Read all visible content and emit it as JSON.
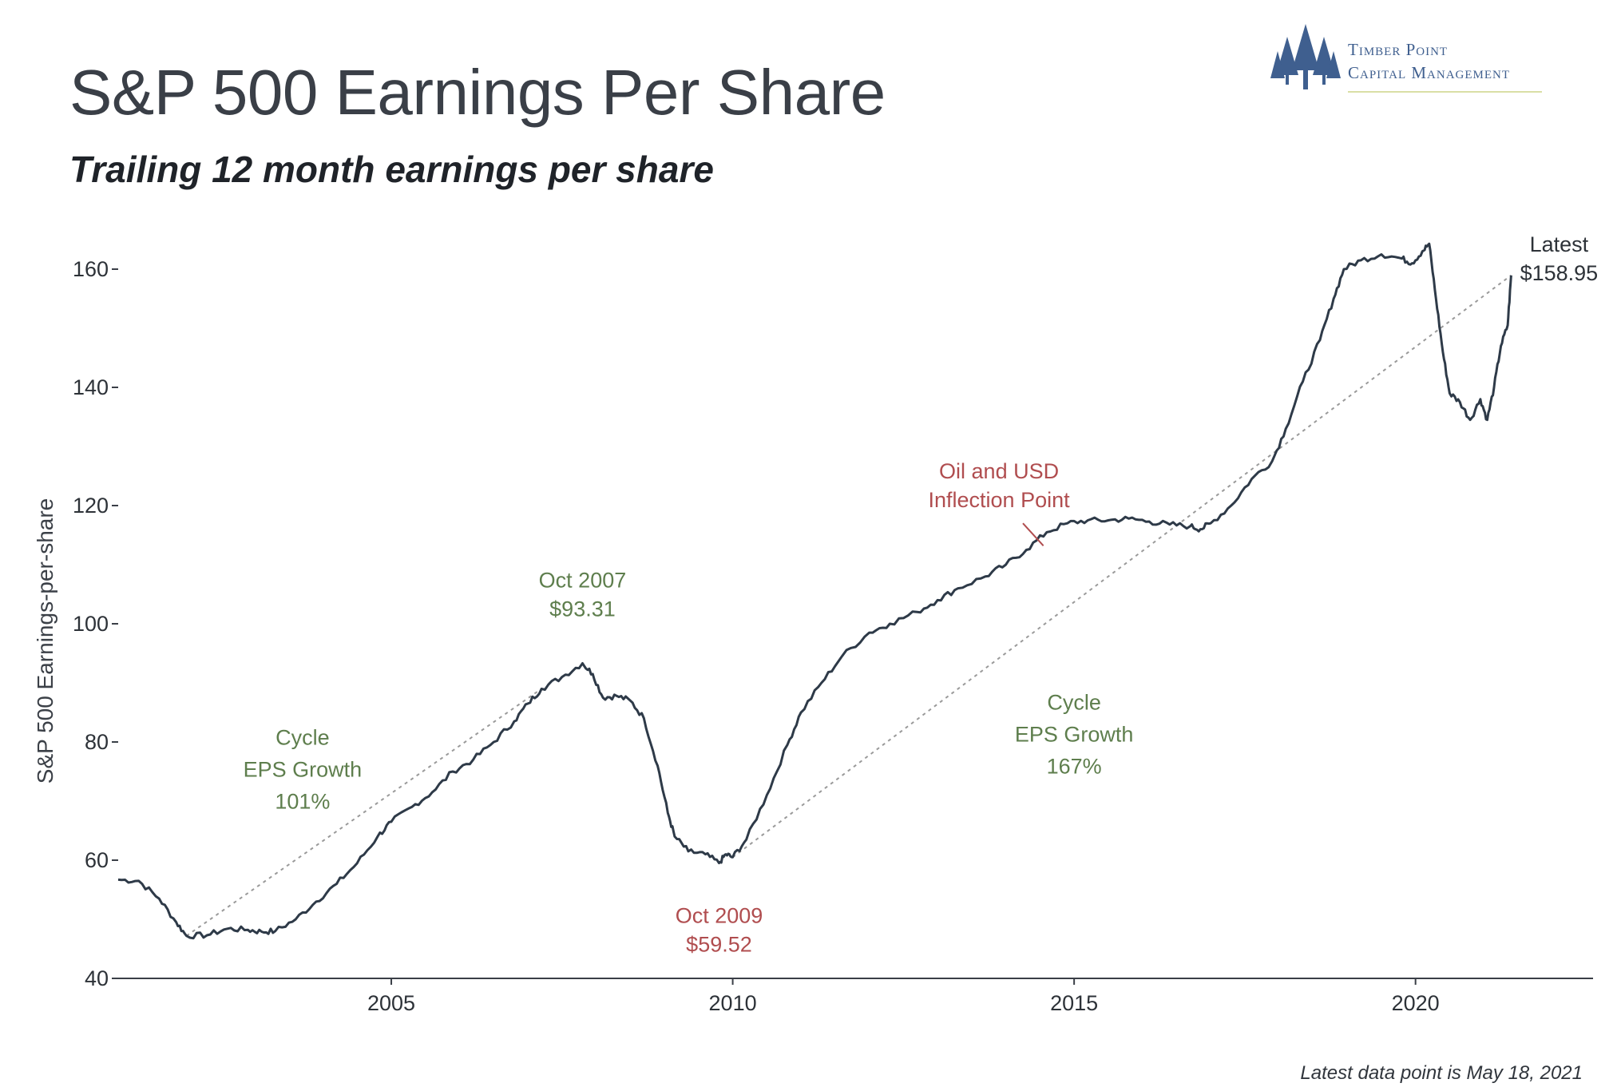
{
  "header": {
    "title": "S&P 500 Earnings Per Share",
    "subtitle": "Trailing 12 month earnings per share"
  },
  "logo": {
    "line1": "Timber Point",
    "line2": "Capital Management",
    "icon": "pine-trees-icon",
    "color": "#3f5f8f"
  },
  "footnote": "Latest data point is May 18, 2021",
  "colors": {
    "line": "#2e3a48",
    "trend": "#9a9a9a",
    "annotation_green": "#5e7e4d",
    "annotation_red": "#b04d4f"
  },
  "chart_data": {
    "type": "line",
    "title": "S&P 500 Earnings Per Share",
    "subtitle": "Trailing 12 month earnings per share",
    "ylabel": "S&P 500 Earnings-per-share",
    "xlabel": "",
    "xlim": [
      2001.0,
      2022.6
    ],
    "ylim": [
      40,
      165
    ],
    "x_ticks": [
      2005,
      2010,
      2015,
      2020
    ],
    "x_tick_labels": [
      "2005",
      "2010",
      "2015",
      "2020"
    ],
    "y_ticks": [
      40,
      60,
      80,
      100,
      120,
      140,
      160
    ],
    "y_tick_labels": [
      "40",
      "60",
      "80",
      "100",
      "120",
      "140",
      "160"
    ],
    "grid": false,
    "series": [
      {
        "values": [
          [
            2001.0,
            56.7
          ],
          [
            2001.3,
            56.5
          ],
          [
            2001.6,
            53.5
          ],
          [
            2001.85,
            49.5
          ],
          [
            2002.0,
            47.2
          ],
          [
            2002.3,
            47.3
          ],
          [
            2002.6,
            48.4
          ],
          [
            2002.9,
            48.2
          ],
          [
            2003.1,
            47.9
          ],
          [
            2003.3,
            48.0
          ],
          [
            2003.6,
            50.0
          ],
          [
            2003.9,
            53.0
          ],
          [
            2004.2,
            56.0
          ],
          [
            2004.5,
            59.5
          ],
          [
            2004.8,
            64.0
          ],
          [
            2005.0,
            66.5
          ],
          [
            2005.3,
            69.0
          ],
          [
            2005.6,
            71.5
          ],
          [
            2005.9,
            75.0
          ],
          [
            2006.2,
            77.0
          ],
          [
            2006.5,
            80.0
          ],
          [
            2006.8,
            83.5
          ],
          [
            2007.0,
            86.5
          ],
          [
            2007.2,
            89.0
          ],
          [
            2007.5,
            91.0
          ],
          [
            2007.8,
            93.31
          ],
          [
            2007.95,
            91.5
          ],
          [
            2008.1,
            87.5
          ],
          [
            2008.3,
            87.8
          ],
          [
            2008.5,
            87.0
          ],
          [
            2008.7,
            84.0
          ],
          [
            2008.9,
            76.0
          ],
          [
            2009.05,
            68.0
          ],
          [
            2009.15,
            64.0
          ],
          [
            2009.35,
            61.5
          ],
          [
            2009.6,
            61.0
          ],
          [
            2009.8,
            59.52
          ],
          [
            2009.9,
            61.0
          ],
          [
            2010.0,
            60.5
          ],
          [
            2010.2,
            63.5
          ],
          [
            2010.5,
            71.0
          ],
          [
            2010.8,
            79.5
          ],
          [
            2011.0,
            85.0
          ],
          [
            2011.3,
            90.0
          ],
          [
            2011.6,
            94.5
          ],
          [
            2012.0,
            98.5
          ],
          [
            2012.3,
            100.0
          ],
          [
            2012.7,
            102.0
          ],
          [
            2013.0,
            104.0
          ],
          [
            2013.3,
            106.0
          ],
          [
            2013.7,
            108.0
          ],
          [
            2014.0,
            110.0
          ],
          [
            2014.3,
            112.5
          ],
          [
            2014.6,
            115.5
          ],
          [
            2014.9,
            117.0
          ],
          [
            2015.2,
            117.5
          ],
          [
            2015.5,
            117.5
          ],
          [
            2015.8,
            117.8
          ],
          [
            2016.1,
            117.3
          ],
          [
            2016.4,
            116.8
          ],
          [
            2016.7,
            116.5
          ],
          [
            2016.85,
            116.0
          ],
          [
            2017.0,
            117.0
          ],
          [
            2017.3,
            120.0
          ],
          [
            2017.6,
            124.5
          ],
          [
            2017.9,
            127.5
          ],
          [
            2018.1,
            133.0
          ],
          [
            2018.35,
            141.0
          ],
          [
            2018.6,
            148.0
          ],
          [
            2018.8,
            155.0
          ],
          [
            2018.95,
            160.0
          ],
          [
            2019.2,
            161.5
          ],
          [
            2019.5,
            162.5
          ],
          [
            2019.8,
            161.8
          ],
          [
            2019.95,
            161.0
          ],
          [
            2020.1,
            163.0
          ],
          [
            2020.2,
            164.3
          ],
          [
            2020.3,
            155.0
          ],
          [
            2020.4,
            146.0
          ],
          [
            2020.5,
            139.0
          ],
          [
            2020.65,
            137.5
          ],
          [
            2020.8,
            134.5
          ],
          [
            2020.95,
            138.0
          ],
          [
            2021.05,
            134.5
          ],
          [
            2021.15,
            140.0
          ],
          [
            2021.25,
            147.0
          ],
          [
            2021.35,
            150.5
          ],
          [
            2021.4,
            158.95
          ]
        ]
      }
    ],
    "trendlines": [
      {
        "from": [
          2002.0,
          47.2
        ],
        "to": [
          2007.2,
          89.0
        ]
      },
      {
        "from": [
          2010.0,
          60.5
        ],
        "to": [
          2021.4,
          158.95
        ]
      }
    ],
    "annotations": [
      {
        "lines": [
          "Oct 2007",
          "$93.31"
        ],
        "x": 2007.8,
        "y": 93.31,
        "style": "green"
      },
      {
        "lines": [
          "Oct 2009",
          "$59.52"
        ],
        "x": 2009.8,
        "y": 59.52,
        "style": "red"
      },
      {
        "lines": [
          "Cycle",
          "EPS Growth",
          "101%"
        ],
        "style": "green"
      },
      {
        "lines": [
          "Cycle",
          "EPS Growth",
          "167%"
        ],
        "style": "green"
      },
      {
        "lines": [
          "Oil and USD",
          "Inflection Point"
        ],
        "x": 2014.5,
        "y": 114.0,
        "style": "red"
      },
      {
        "lines": [
          "Latest",
          "$158.95"
        ],
        "x": 2021.4,
        "y": 158.95,
        "style": "dark"
      }
    ]
  }
}
